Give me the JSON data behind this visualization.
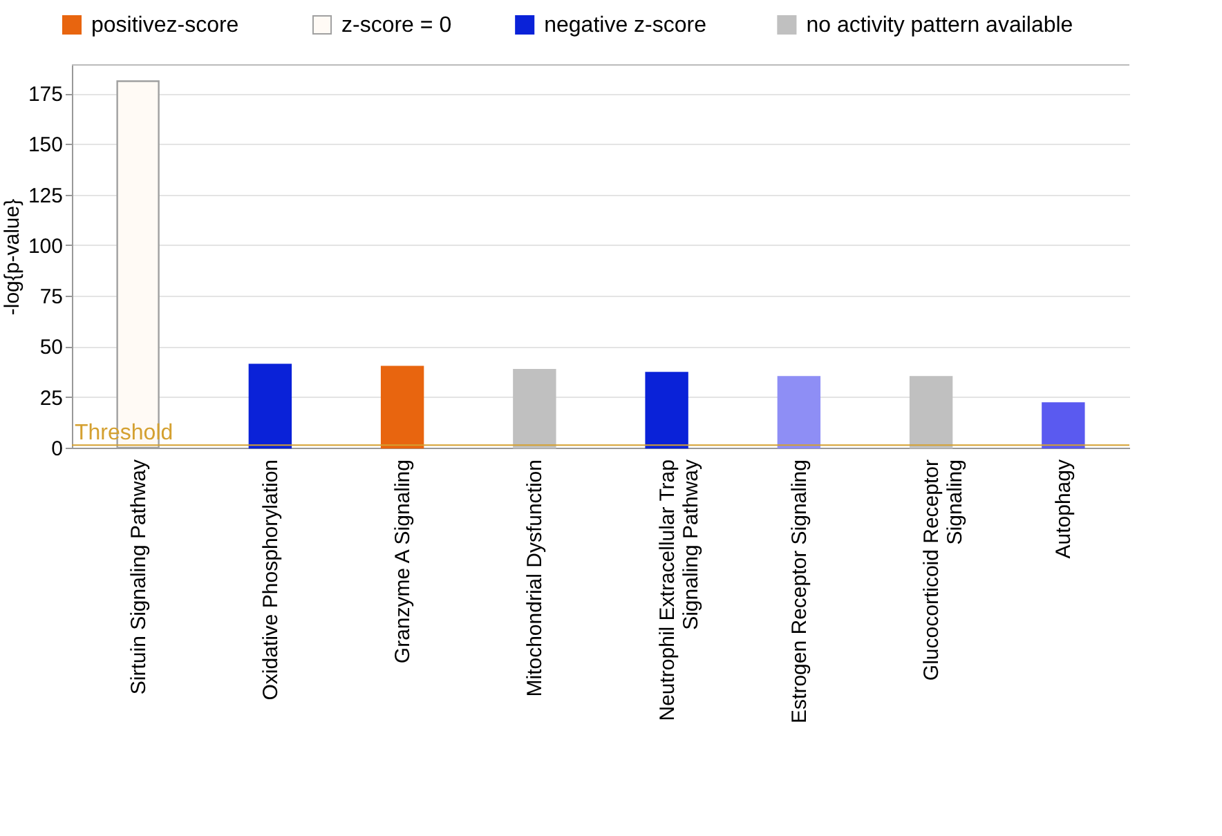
{
  "chart_data": {
    "type": "bar",
    "ylabel": "-log{p-value}",
    "categories": [
      "Sirtuin Signaling Pathway",
      "Oxidative Phosphorylation",
      "Granzyme A Signaling",
      "Mitochondrial Dysfunction",
      "Neutrophil Extracellular Trap Signaling Pathway",
      "Estrogen Receptor Signaling",
      "Glucocorticoid Receptor Signaling",
      "Autophagy"
    ],
    "series": [
      {
        "name": "positivez-score",
        "color": "#e8650f",
        "values": [
          null,
          null,
          40,
          null,
          null,
          null,
          null,
          null
        ]
      },
      {
        "name": "z-score = 0",
        "color": "#fffaf5",
        "values": [
          181,
          null,
          null,
          null,
          null,
          null,
          null,
          null
        ]
      },
      {
        "name": "negative z-score",
        "color": "#0a22d8",
        "values": [
          null,
          41,
          null,
          null,
          37,
          35,
          null,
          22
        ],
        "colors": [
          null,
          "#0a22d8",
          null,
          null,
          "#0a22d8",
          "#8e8ef5",
          null,
          "#5a5af0"
        ]
      },
      {
        "name": "no activity pattern available",
        "color": "#c0c0c0",
        "values": [
          null,
          null,
          null,
          38.5,
          null,
          null,
          35,
          null
        ]
      }
    ],
    "ylim": [
      0,
      189
    ],
    "yticks": [
      0,
      25,
      50,
      75,
      100,
      125,
      150,
      175
    ],
    "grid": "y",
    "legend": "top left",
    "ref_lines": [
      {
        "axis": "y",
        "value": 1.3,
        "label": "Threshold",
        "color": "#d4a030"
      }
    ]
  }
}
